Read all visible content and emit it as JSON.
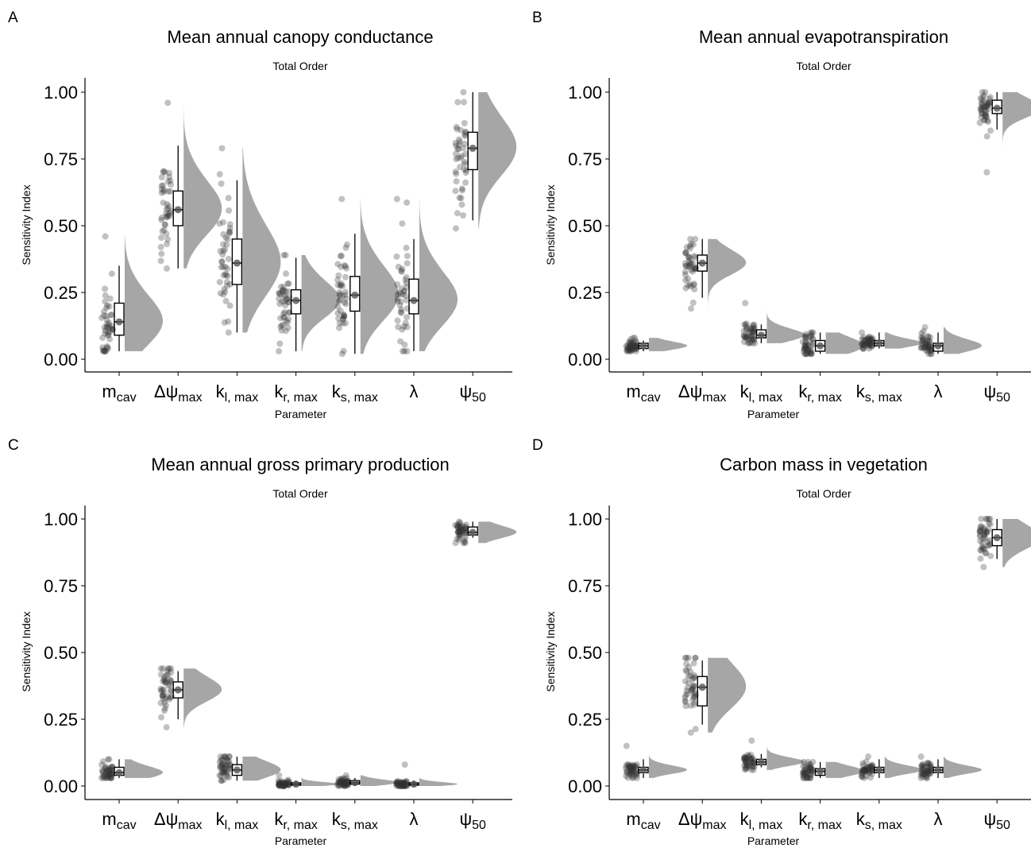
{
  "figure": {
    "y_axis_label": "Sensitivity Index",
    "x_axis_label": "Parameter",
    "y_ticks": [
      "0.00",
      "0.25",
      "0.50",
      "0.75",
      "1.00"
    ],
    "parameters": [
      {
        "main": "m",
        "sub": "cav"
      },
      {
        "main": "Δψ",
        "sub": "max"
      },
      {
        "main": "k",
        "sub": "l, max"
      },
      {
        "main": "k",
        "sub": "r, max"
      },
      {
        "main": "k",
        "sub": "s, max"
      },
      {
        "main": "λ",
        "sub": ""
      },
      {
        "main": "ψ",
        "sub": "50"
      }
    ],
    "colors": {
      "density": "#a6a6a6",
      "points": "#333333",
      "box_stroke": "#000000",
      "median_dot": "#555555"
    }
  },
  "chart_data": [
    {
      "type": "raincloud",
      "panel_letter": "A",
      "title": "Mean annual canopy conductance",
      "subtitle": "Total Order",
      "ylabel": "Sensitivity Index",
      "xlabel": "Parameter",
      "ylim": [
        0,
        1
      ],
      "categories": [
        "m_cav",
        "Δψ_max",
        "k_l,max",
        "k_r,max",
        "k_s,max",
        "λ",
        "ψ_50"
      ],
      "box": [
        {
          "min": 0.03,
          "q1": 0.09,
          "median": 0.14,
          "q3": 0.21,
          "max": 0.35,
          "points_min": 0.03,
          "points_max": 0.46
        },
        {
          "min": 0.34,
          "q1": 0.5,
          "median": 0.56,
          "q3": 0.63,
          "max": 0.8,
          "points_min": 0.34,
          "points_max": 0.96
        },
        {
          "min": 0.1,
          "q1": 0.28,
          "median": 0.36,
          "q3": 0.45,
          "max": 0.67,
          "points_min": 0.1,
          "points_max": 0.79
        },
        {
          "min": 0.03,
          "q1": 0.17,
          "median": 0.22,
          "q3": 0.26,
          "max": 0.38,
          "points_min": 0.03,
          "points_max": 0.39
        },
        {
          "min": 0.02,
          "q1": 0.18,
          "median": 0.24,
          "q3": 0.31,
          "max": 0.47,
          "points_min": 0.02,
          "points_max": 0.6
        },
        {
          "min": 0.03,
          "q1": 0.17,
          "median": 0.22,
          "q3": 0.3,
          "max": 0.45,
          "points_min": 0.03,
          "points_max": 0.6
        },
        {
          "min": 0.52,
          "q1": 0.71,
          "median": 0.79,
          "q3": 0.85,
          "max": 1.0,
          "points_min": 0.49,
          "points_max": 1.0
        }
      ]
    },
    {
      "type": "raincloud",
      "panel_letter": "B",
      "title": "Mean annual evapotranspiration",
      "subtitle": "Total Order",
      "ylabel": "Sensitivity Index",
      "xlabel": "Parameter",
      "ylim": [
        0,
        1
      ],
      "categories": [
        "m_cav",
        "Δψ_max",
        "k_l,max",
        "k_r,max",
        "k_s,max",
        "λ",
        "ψ_50"
      ],
      "box": [
        {
          "min": 0.03,
          "q1": 0.04,
          "median": 0.05,
          "q3": 0.06,
          "max": 0.07,
          "points_min": 0.03,
          "points_max": 0.08
        },
        {
          "min": 0.23,
          "q1": 0.33,
          "median": 0.36,
          "q3": 0.39,
          "max": 0.45,
          "points_min": 0.19,
          "points_max": 0.45
        },
        {
          "min": 0.06,
          "q1": 0.08,
          "median": 0.09,
          "q3": 0.11,
          "max": 0.13,
          "points_min": 0.06,
          "points_max": 0.21
        },
        {
          "min": 0.02,
          "q1": 0.03,
          "median": 0.05,
          "q3": 0.07,
          "max": 0.1,
          "points_min": 0.02,
          "points_max": 0.1
        },
        {
          "min": 0.04,
          "q1": 0.05,
          "median": 0.06,
          "q3": 0.07,
          "max": 0.1,
          "points_min": 0.04,
          "points_max": 0.1
        },
        {
          "min": 0.02,
          "q1": 0.03,
          "median": 0.05,
          "q3": 0.06,
          "max": 0.1,
          "points_min": 0.02,
          "points_max": 0.12
        },
        {
          "min": 0.86,
          "q1": 0.92,
          "median": 0.94,
          "q3": 0.97,
          "max": 1.0,
          "points_min": 0.7,
          "points_max": 1.0
        }
      ]
    },
    {
      "type": "raincloud",
      "panel_letter": "C",
      "title": "Mean annual gross primary production",
      "subtitle": "Total Order",
      "ylabel": "Sensitivity Index",
      "xlabel": "Parameter",
      "ylim": [
        0,
        1
      ],
      "categories": [
        "m_cav",
        "Δψ_max",
        "k_l,max",
        "k_r,max",
        "k_s,max",
        "λ",
        "ψ_50"
      ],
      "box": [
        {
          "min": 0.03,
          "q1": 0.04,
          "median": 0.05,
          "q3": 0.07,
          "max": 0.1,
          "points_min": 0.03,
          "points_max": 0.1
        },
        {
          "min": 0.25,
          "q1": 0.33,
          "median": 0.36,
          "q3": 0.39,
          "max": 0.43,
          "points_min": 0.22,
          "points_max": 0.44
        },
        {
          "min": 0.02,
          "q1": 0.04,
          "median": 0.06,
          "q3": 0.08,
          "max": 0.11,
          "points_min": 0.02,
          "points_max": 0.11
        },
        {
          "min": 0.0,
          "q1": 0.003,
          "median": 0.007,
          "q3": 0.012,
          "max": 0.02,
          "points_min": 0.0,
          "points_max": 0.04
        },
        {
          "min": 0.0,
          "q1": 0.007,
          "median": 0.013,
          "q3": 0.02,
          "max": 0.03,
          "points_min": 0.0,
          "points_max": 0.04
        },
        {
          "min": 0.0,
          "q1": 0.003,
          "median": 0.007,
          "q3": 0.012,
          "max": 0.02,
          "points_min": 0.0,
          "points_max": 0.08
        },
        {
          "min": 0.93,
          "q1": 0.94,
          "median": 0.95,
          "q3": 0.97,
          "max": 0.99,
          "points_min": 0.91,
          "points_max": 0.99
        }
      ]
    },
    {
      "type": "raincloud",
      "panel_letter": "D",
      "title": "Carbon mass in vegetation",
      "subtitle": "Total Order",
      "ylabel": "Sensitivity Index",
      "xlabel": "Parameter",
      "ylim": [
        0,
        1
      ],
      "categories": [
        "m_cav",
        "Δψ_max",
        "k_l,max",
        "k_r,max",
        "k_s,max",
        "λ",
        "ψ_50"
      ],
      "box": [
        {
          "min": 0.03,
          "q1": 0.05,
          "median": 0.06,
          "q3": 0.07,
          "max": 0.1,
          "points_min": 0.03,
          "points_max": 0.15
        },
        {
          "min": 0.23,
          "q1": 0.3,
          "median": 0.37,
          "q3": 0.41,
          "max": 0.47,
          "points_min": 0.2,
          "points_max": 0.48
        },
        {
          "min": 0.07,
          "q1": 0.08,
          "median": 0.09,
          "q3": 0.1,
          "max": 0.12,
          "points_min": 0.06,
          "points_max": 0.17
        },
        {
          "min": 0.03,
          "q1": 0.04,
          "median": 0.055,
          "q3": 0.065,
          "max": 0.09,
          "points_min": 0.03,
          "points_max": 0.09
        },
        {
          "min": 0.03,
          "q1": 0.05,
          "median": 0.06,
          "q3": 0.07,
          "max": 0.1,
          "points_min": 0.03,
          "points_max": 0.11
        },
        {
          "min": 0.03,
          "q1": 0.05,
          "median": 0.06,
          "q3": 0.07,
          "max": 0.1,
          "points_min": 0.03,
          "points_max": 0.11
        },
        {
          "min": 0.85,
          "q1": 0.9,
          "median": 0.93,
          "q3": 0.96,
          "max": 1.0,
          "points_min": 0.82,
          "points_max": 1.0
        }
      ]
    }
  ]
}
